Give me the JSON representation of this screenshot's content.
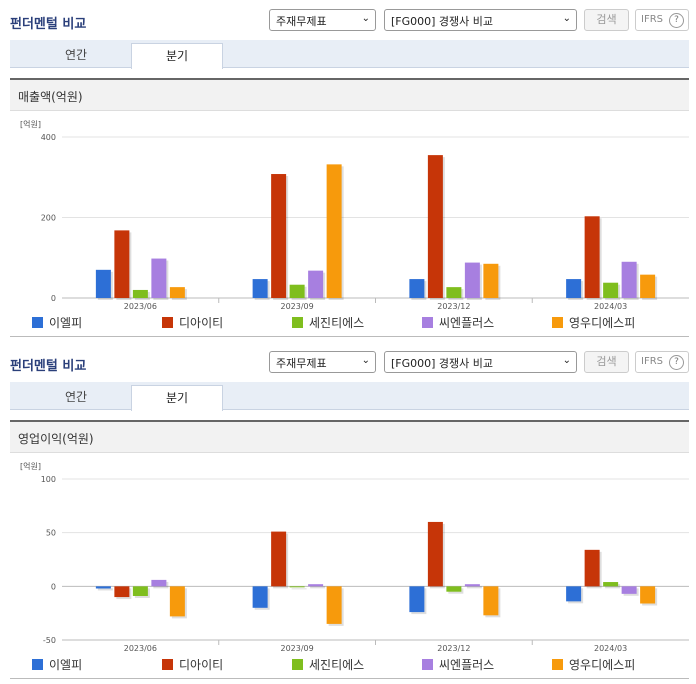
{
  "panels": [
    {
      "title": "펀더멘털 비교",
      "select_main": "주재무제표",
      "select_compare": "[FG000] 경쟁사 비교",
      "search_label": "검색",
      "ifrs_label": "IFRS",
      "help_label": "?",
      "tabs": [
        "연간",
        "분기"
      ],
      "active_tab": 1,
      "chart_title": "매출액(억원)",
      "unit_label": "[억원]"
    },
    {
      "title": "펀더멘털 비교",
      "select_main": "주재무제표",
      "select_compare": "[FG000] 경쟁사 비교",
      "search_label": "검색",
      "ifrs_label": "IFRS",
      "help_label": "?",
      "tabs": [
        "연간",
        "분기"
      ],
      "active_tab": 1,
      "chart_title": "영업이익(억원)",
      "unit_label": "[억원]"
    }
  ],
  "colors": {
    "series": [
      "#2d6fd6",
      "#c63508",
      "#7fbe1e",
      "#a77fe0",
      "#f79a0c"
    ],
    "title": "#2a3f7a",
    "tabbar": "#e8eef6"
  },
  "chart_data": [
    {
      "type": "bar",
      "title": "매출액(억원)",
      "ylabel": "[억원]",
      "categories": [
        "2023/06",
        "2023/09",
        "2023/12",
        "2024/03"
      ],
      "ylim": [
        0,
        400
      ],
      "yticks": [
        0,
        200,
        400
      ],
      "series": [
        {
          "name": "이엘피",
          "values": [
            70,
            47,
            47,
            47
          ]
        },
        {
          "name": "디아이티",
          "values": [
            168,
            308,
            355,
            203
          ]
        },
        {
          "name": "세진티에스",
          "values": [
            20,
            33,
            27,
            38
          ]
        },
        {
          "name": "씨엔플러스",
          "values": [
            98,
            68,
            88,
            90
          ]
        },
        {
          "name": "영우디에스피",
          "values": [
            27,
            332,
            85,
            58
          ]
        }
      ],
      "legend": "bottom"
    },
    {
      "type": "bar",
      "title": "영업이익(억원)",
      "ylabel": "[억원]",
      "categories": [
        "2023/06",
        "2023/09",
        "2023/12",
        "2024/03"
      ],
      "ylim": [
        -50,
        100
      ],
      "yticks": [
        -50,
        0,
        50,
        100
      ],
      "series": [
        {
          "name": "이엘피",
          "values": [
            -2,
            -20,
            -24,
            -14
          ]
        },
        {
          "name": "디아이티",
          "values": [
            -10,
            51,
            60,
            34
          ]
        },
        {
          "name": "세진티에스",
          "values": [
            -9,
            0,
            -5,
            4
          ]
        },
        {
          "name": "씨엔플러스",
          "values": [
            6,
            2,
            2,
            -7
          ]
        },
        {
          "name": "영우디에스피",
          "values": [
            -28,
            -35,
            -27,
            -16
          ]
        }
      ],
      "legend": "bottom"
    }
  ]
}
